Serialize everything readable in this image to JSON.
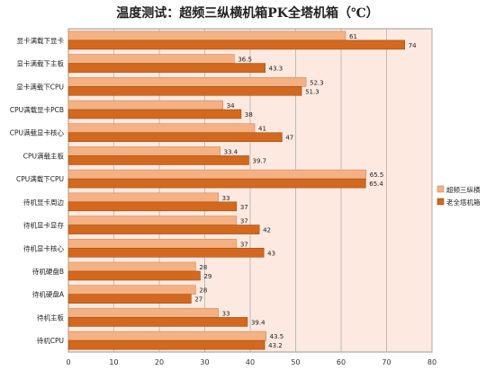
{
  "chart_data": {
    "type": "bar",
    "orientation": "horizontal",
    "title": "温度测试：超频三纵横机箱PK全塔机箱（℃）",
    "categories": [
      "显卡满载下显卡",
      "显卡满载下主板",
      "显卡满载下CPU",
      "CPU满载显卡PCB",
      "CPU满载显卡核心",
      "CPU满载主板",
      "CPU满载下CPU",
      "待机显卡周边",
      "待机显卡显存",
      "待机显卡核心",
      "待机硬盘B",
      "待机硬盘A",
      "待机主板",
      "待机CPU"
    ],
    "series": [
      {
        "name": "超频三纵横",
        "color": "#f4b183",
        "values": [
          61,
          36.5,
          52.3,
          34,
          41,
          33.4,
          65.5,
          33,
          37,
          37,
          28,
          28,
          33,
          43.5
        ]
      },
      {
        "name": "老全塔机箱",
        "color": "#d2691e",
        "values": [
          74,
          43.3,
          51.3,
          38,
          47,
          39.7,
          65.4,
          37,
          42,
          43,
          29,
          27,
          39.4,
          43.2
        ]
      }
    ],
    "xlim": [
      0,
      80
    ],
    "xticks": [
      0,
      10,
      20,
      30,
      40,
      50,
      60,
      70,
      80
    ],
    "grid": true,
    "legend_position": "right",
    "plot_background": "#fde9e0"
  }
}
